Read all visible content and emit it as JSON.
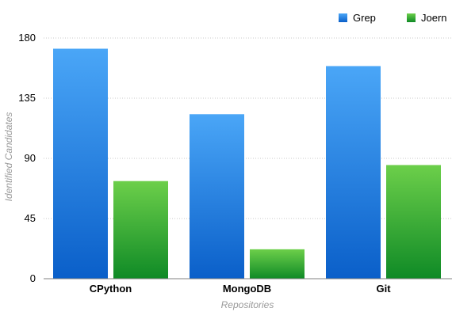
{
  "chart_data": {
    "type": "bar",
    "categories": [
      "CPython",
      "MongoDB",
      "Git"
    ],
    "series": [
      {
        "name": "Grep",
        "values": [
          172,
          123,
          159
        ],
        "color": "#2f7be0"
      },
      {
        "name": "Joern",
        "values": [
          73,
          22,
          85
        ],
        "color": "#3cae3a"
      }
    ],
    "xlabel": "Repositories",
    "ylabel": "Identified Candidates",
    "ylim": [
      0,
      180
    ],
    "yticks": [
      "0",
      "45",
      "90",
      "135",
      "180"
    ],
    "grid": true,
    "legend_position": "top-right"
  }
}
